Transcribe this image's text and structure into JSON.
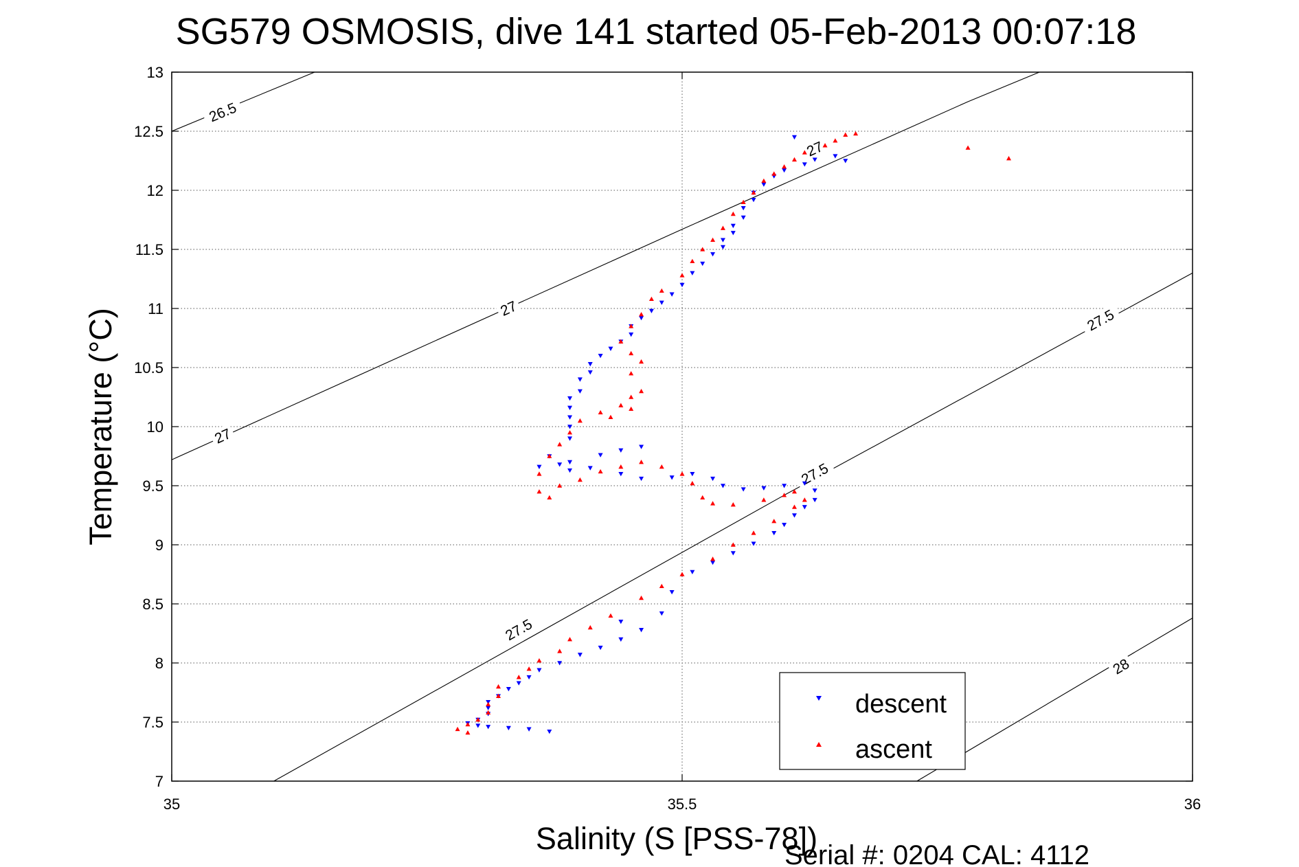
{
  "chart_data": {
    "type": "scatter",
    "title": "SG579 OSMOSIS, dive 141 started 05-Feb-2013 00:07:18",
    "xlabel": "Salinity (S [PSS-78])",
    "ylabel": "Temperature (°C)",
    "footer": "Serial #: 0204  CAL: 4112",
    "xlim": [
      35,
      36
    ],
    "ylim": [
      7,
      13
    ],
    "x_ticks": [
      35,
      35.5,
      36
    ],
    "x_tick_labels": [
      "35",
      "35.5",
      "36"
    ],
    "y_ticks": [
      7,
      7.5,
      8,
      8.5,
      9,
      9.5,
      10,
      10.5,
      11,
      11.5,
      12,
      12.5,
      13
    ],
    "y_tick_labels": [
      "7",
      "7.5",
      "8",
      "8.5",
      "9",
      "9.5",
      "10",
      "10.5",
      "11",
      "11.5",
      "12",
      "12.5",
      "13"
    ],
    "grid": true,
    "legend_position": "bottom-right",
    "contours": [
      {
        "label": "26.5",
        "points": [
          [
            35,
            12.5
          ],
          [
            35.14,
            13.0
          ]
        ],
        "label_positions": [
          [
            35.05,
            12.66
          ]
        ]
      },
      {
        "label": "27",
        "points": [
          [
            35,
            9.72
          ],
          [
            35.5,
            11.67
          ],
          [
            35.78,
            12.75
          ],
          [
            35.85,
            13.0
          ]
        ],
        "label_positions": [
          [
            35.05,
            9.92
          ],
          [
            35.33,
            11.0
          ],
          [
            35.63,
            12.35
          ]
        ]
      },
      {
        "label": "27.5",
        "points": [
          [
            35.1,
            7.0
          ],
          [
            35.6,
            9.42
          ],
          [
            36,
            11.3
          ]
        ],
        "label_positions": [
          [
            35.34,
            8.28
          ],
          [
            35.63,
            9.6
          ],
          [
            35.91,
            10.9
          ]
        ]
      },
      {
        "label": "28",
        "points": [
          [
            35.73,
            7.0
          ],
          [
            36,
            8.38
          ]
        ],
        "label_positions": [
          [
            35.93,
            7.97
          ]
        ]
      }
    ],
    "series": [
      {
        "name": "descent",
        "color": "#0000ff",
        "marker": "triangle-down",
        "points": [
          [
            35.37,
            7.42
          ],
          [
            35.35,
            7.44
          ],
          [
            35.33,
            7.45
          ],
          [
            35.31,
            7.46
          ],
          [
            35.3,
            7.47
          ],
          [
            35.29,
            7.49
          ],
          [
            35.3,
            7.52
          ],
          [
            35.31,
            7.57
          ],
          [
            35.31,
            7.62
          ],
          [
            35.31,
            7.67
          ],
          [
            35.32,
            7.72
          ],
          [
            35.33,
            7.78
          ],
          [
            35.34,
            7.83
          ],
          [
            35.35,
            7.88
          ],
          [
            35.36,
            7.94
          ],
          [
            35.38,
            8.0
          ],
          [
            35.4,
            8.07
          ],
          [
            35.42,
            8.13
          ],
          [
            35.44,
            8.2
          ],
          [
            35.46,
            8.28
          ],
          [
            35.44,
            8.35
          ],
          [
            35.48,
            8.42
          ],
          [
            35.49,
            8.6
          ],
          [
            35.51,
            8.77
          ],
          [
            35.53,
            8.85
          ],
          [
            35.55,
            8.93
          ],
          [
            35.57,
            9.01
          ],
          [
            35.59,
            9.1
          ],
          [
            35.6,
            9.17
          ],
          [
            35.61,
            9.25
          ],
          [
            35.62,
            9.32
          ],
          [
            35.63,
            9.38
          ],
          [
            35.63,
            9.46
          ],
          [
            35.62,
            9.52
          ],
          [
            35.6,
            9.5
          ],
          [
            35.58,
            9.48
          ],
          [
            35.56,
            9.47
          ],
          [
            35.54,
            9.5
          ],
          [
            35.53,
            9.56
          ],
          [
            35.51,
            9.6
          ],
          [
            35.49,
            9.57
          ],
          [
            35.46,
            9.56
          ],
          [
            35.44,
            9.6
          ],
          [
            35.41,
            9.65
          ],
          [
            35.39,
            9.63
          ],
          [
            35.39,
            9.7
          ],
          [
            35.42,
            9.76
          ],
          [
            35.46,
            9.83
          ],
          [
            35.44,
            9.8
          ],
          [
            35.37,
            9.75
          ],
          [
            35.36,
            9.66
          ],
          [
            35.38,
            9.68
          ],
          [
            35.39,
            9.9
          ],
          [
            35.39,
            10.0
          ],
          [
            35.39,
            10.08
          ],
          [
            35.39,
            10.16
          ],
          [
            35.39,
            10.24
          ],
          [
            35.4,
            10.3
          ],
          [
            35.4,
            10.4
          ],
          [
            35.41,
            10.46
          ],
          [
            35.41,
            10.53
          ],
          [
            35.42,
            10.6
          ],
          [
            35.43,
            10.66
          ],
          [
            35.44,
            10.72
          ],
          [
            35.45,
            10.78
          ],
          [
            35.45,
            10.85
          ],
          [
            35.46,
            10.92
          ],
          [
            35.47,
            10.98
          ],
          [
            35.48,
            11.05
          ],
          [
            35.49,
            11.12
          ],
          [
            35.5,
            11.2
          ],
          [
            35.51,
            11.3
          ],
          [
            35.52,
            11.38
          ],
          [
            35.53,
            11.46
          ],
          [
            35.54,
            11.52
          ],
          [
            35.54,
            11.58
          ],
          [
            35.55,
            11.64
          ],
          [
            35.55,
            11.7
          ],
          [
            35.56,
            11.77
          ],
          [
            35.56,
            11.85
          ],
          [
            35.57,
            11.92
          ],
          [
            35.57,
            11.98
          ],
          [
            35.58,
            12.05
          ],
          [
            35.59,
            12.12
          ],
          [
            35.6,
            12.17
          ],
          [
            35.62,
            12.22
          ],
          [
            35.63,
            12.26
          ],
          [
            35.65,
            12.29
          ],
          [
            35.66,
            12.25
          ],
          [
            35.61,
            12.45
          ]
        ]
      },
      {
        "name": "ascent",
        "color": "#ff0000",
        "marker": "triangle-up",
        "points": [
          [
            35.29,
            7.41
          ],
          [
            35.28,
            7.44
          ],
          [
            35.29,
            7.48
          ],
          [
            35.3,
            7.52
          ],
          [
            35.31,
            7.58
          ],
          [
            35.31,
            7.65
          ],
          [
            35.32,
            7.72
          ],
          [
            35.32,
            7.8
          ],
          [
            35.34,
            7.88
          ],
          [
            35.35,
            7.95
          ],
          [
            35.36,
            8.02
          ],
          [
            35.38,
            8.1
          ],
          [
            35.39,
            8.2
          ],
          [
            35.41,
            8.3
          ],
          [
            35.43,
            8.4
          ],
          [
            35.46,
            8.55
          ],
          [
            35.48,
            8.65
          ],
          [
            35.5,
            8.75
          ],
          [
            35.53,
            8.88
          ],
          [
            35.55,
            9.0
          ],
          [
            35.57,
            9.1
          ],
          [
            35.59,
            9.2
          ],
          [
            35.61,
            9.32
          ],
          [
            35.62,
            9.38
          ],
          [
            35.61,
            9.45
          ],
          [
            35.6,
            9.42
          ],
          [
            35.58,
            9.38
          ],
          [
            35.55,
            9.34
          ],
          [
            35.53,
            9.35
          ],
          [
            35.52,
            9.4
          ],
          [
            35.51,
            9.52
          ],
          [
            35.5,
            9.6
          ],
          [
            35.48,
            9.66
          ],
          [
            35.46,
            9.7
          ],
          [
            35.44,
            9.66
          ],
          [
            35.42,
            9.62
          ],
          [
            35.4,
            9.55
          ],
          [
            35.38,
            9.5
          ],
          [
            35.37,
            9.4
          ],
          [
            35.36,
            9.45
          ],
          [
            35.36,
            9.6
          ],
          [
            35.37,
            9.75
          ],
          [
            35.38,
            9.85
          ],
          [
            35.39,
            9.95
          ],
          [
            35.4,
            10.05
          ],
          [
            35.42,
            10.12
          ],
          [
            35.44,
            10.18
          ],
          [
            35.45,
            10.25
          ],
          [
            35.46,
            10.3
          ],
          [
            35.45,
            10.15
          ],
          [
            35.43,
            10.08
          ],
          [
            35.45,
            10.45
          ],
          [
            35.46,
            10.55
          ],
          [
            35.45,
            10.62
          ],
          [
            35.44,
            10.72
          ],
          [
            35.45,
            10.85
          ],
          [
            35.46,
            10.95
          ],
          [
            35.47,
            11.08
          ],
          [
            35.48,
            11.15
          ],
          [
            35.5,
            11.28
          ],
          [
            35.51,
            11.4
          ],
          [
            35.52,
            11.5
          ],
          [
            35.53,
            11.58
          ],
          [
            35.54,
            11.68
          ],
          [
            35.55,
            11.8
          ],
          [
            35.56,
            11.9
          ],
          [
            35.57,
            11.98
          ],
          [
            35.58,
            12.08
          ],
          [
            35.59,
            12.14
          ],
          [
            35.6,
            12.2
          ],
          [
            35.61,
            12.26
          ],
          [
            35.62,
            12.32
          ],
          [
            35.64,
            12.38
          ],
          [
            35.65,
            12.42
          ],
          [
            35.66,
            12.47
          ],
          [
            35.67,
            12.48
          ],
          [
            35.78,
            12.36
          ],
          [
            35.82,
            12.27
          ]
        ]
      }
    ]
  }
}
